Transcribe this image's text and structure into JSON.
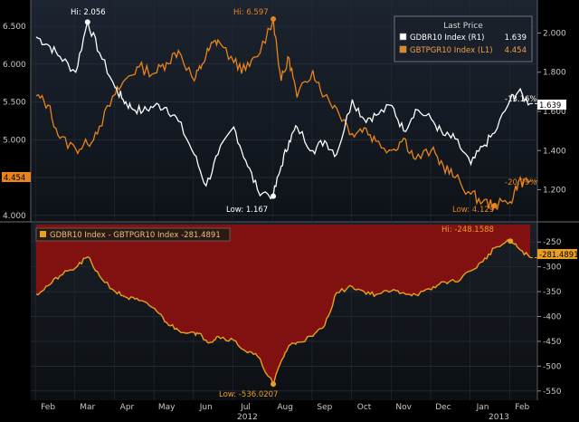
{
  "chart_data": [
    {
      "type": "line",
      "title": "Last Price",
      "y_left": {
        "ticks": [
          4.0,
          4.5,
          5.0,
          5.5,
          6.0,
          6.5
        ],
        "range": [
          3.95,
          6.8
        ],
        "tick_labels": [
          "4.000",
          "4.500",
          "5.000",
          "5.500",
          "6.000",
          "6.500"
        ]
      },
      "y_right": {
        "ticks": [
          1.2,
          1.4,
          1.6,
          1.8,
          2.0
        ],
        "range": [
          1.05,
          2.15
        ],
        "tick_labels": [
          "1.200",
          "1.400",
          "1.600",
          "1.800",
          "2.000"
        ]
      },
      "legend": [
        {
          "label": "GDBR10 Index (R1)",
          "value": "1.639"
        },
        {
          "label": "GBTPGR10 Index (L1)",
          "value": "4.454"
        }
      ],
      "series": [
        {
          "name": "GDBR10 Index",
          "axis": "right",
          "color": "#ffffff",
          "x": [
            0,
            0.3,
            0.6,
            1.0,
            1.3,
            1.6,
            2.0,
            2.2,
            2.4,
            2.7,
            3.0,
            3.3,
            3.6,
            4.0,
            4.3,
            4.6,
            5.0,
            5.3,
            5.6,
            6.0,
            6.2,
            6.4,
            6.6,
            7.0,
            7.3,
            7.6,
            8.0,
            8.3,
            8.6,
            9.0,
            9.3,
            9.6,
            10.0,
            10.3,
            10.6,
            11.0,
            11.3,
            11.6,
            12.0,
            12.2,
            12.5
          ],
          "values": [
            1.98,
            1.94,
            1.88,
            1.8,
            2.06,
            1.9,
            1.72,
            1.66,
            1.62,
            1.6,
            1.63,
            1.62,
            1.55,
            1.38,
            1.22,
            1.38,
            1.52,
            1.35,
            1.2,
            1.17,
            1.32,
            1.45,
            1.52,
            1.4,
            1.45,
            1.38,
            1.66,
            1.56,
            1.58,
            1.63,
            1.5,
            1.61,
            1.56,
            1.48,
            1.46,
            1.33,
            1.42,
            1.49,
            1.66,
            1.7,
            1.64
          ]
        },
        {
          "name": "GBTPGR10 Index",
          "axis": "left",
          "color": "#e8841a",
          "x": [
            0,
            0.3,
            0.6,
            1.0,
            1.3,
            1.6,
            2.0,
            2.3,
            2.6,
            3.0,
            3.3,
            3.6,
            4.0,
            4.2,
            4.4,
            4.6,
            5.0,
            5.3,
            5.6,
            6.0,
            6.2,
            6.4,
            6.6,
            7.0,
            7.3,
            7.6,
            8.0,
            8.3,
            8.6,
            9.0,
            9.3,
            9.6,
            10.0,
            10.3,
            10.6,
            11.0,
            11.3,
            11.6,
            12.0,
            12.2,
            12.5
          ],
          "values": [
            5.58,
            5.46,
            5.02,
            4.88,
            4.94,
            5.18,
            5.6,
            5.82,
            5.96,
            5.88,
            6.02,
            6.18,
            5.78,
            6.0,
            6.22,
            6.32,
            6.02,
            5.92,
            6.1,
            6.597,
            5.78,
            6.08,
            5.56,
            5.92,
            5.58,
            5.42,
            5.08,
            5.16,
            4.98,
            4.86,
            5.02,
            4.74,
            4.86,
            4.66,
            4.5,
            4.28,
            4.18,
            4.129,
            4.18,
            4.44,
            4.454
          ]
        }
      ],
      "annotations": [
        {
          "text": "Hi: 2.056",
          "series": "GDBR10 Index",
          "x": 1.3,
          "y": 2.056
        },
        {
          "text": "Low: 1.167",
          "series": "GDBR10 Index",
          "x": 6.0,
          "y": 1.167
        },
        {
          "text": "Hi: 6.597",
          "series": "GBTPGR10 Index",
          "x": 6.0,
          "y": 6.597
        },
        {
          "text": "Low: 4.129",
          "series": "GBTPGR10 Index",
          "x": 11.6,
          "y": 4.129
        }
      ],
      "end_tags": {
        "right_value": "1.639",
        "left_value": "4.454",
        "gdbr_change": "-13.16%",
        "gbtp_change": "-20.79%"
      }
    },
    {
      "type": "area",
      "title": "GDBR10 Index - GBTPGR10 Index -281.4891",
      "y_right": {
        "ticks": [
          -250,
          -300,
          -350,
          -400,
          -450,
          -500,
          -550
        ],
        "range": [
          -565,
          -215
        ],
        "tick_labels": [
          "-250",
          "-300",
          "-350",
          "-400",
          "-450",
          "-500",
          "-550"
        ]
      },
      "x_labels": [
        "Feb",
        "Mar",
        "Apr",
        "May",
        "Jun",
        "Jul",
        "Aug",
        "Sep",
        "Oct",
        "Nov",
        "Dec",
        "Jan",
        "Feb"
      ],
      "x_positions": [
        0.3,
        1.3,
        2.3,
        3.3,
        4.3,
        5.3,
        6.3,
        7.3,
        8.3,
        9.3,
        10.3,
        11.3,
        12.3
      ],
      "year_labels": [
        {
          "text": "2012",
          "x": 5.8
        },
        {
          "text": "2013",
          "x": 11.6
        }
      ],
      "series": [
        {
          "name": "Spread",
          "color": "#e8a020",
          "fill": "#8b0f0f",
          "x": [
            0,
            0.3,
            0.6,
            1.0,
            1.3,
            1.6,
            2.0,
            2.3,
            2.6,
            3.0,
            3.3,
            3.6,
            4.0,
            4.2,
            4.4,
            4.6,
            5.0,
            5.3,
            5.6,
            6.0,
            6.2,
            6.4,
            6.6,
            7.0,
            7.3,
            7.6,
            8.0,
            8.3,
            8.6,
            9.0,
            9.3,
            9.6,
            10.0,
            10.3,
            10.6,
            11.0,
            11.3,
            11.6,
            12.0,
            12.2,
            12.5
          ],
          "values": [
            -355,
            -338,
            -318,
            -302,
            -280,
            -318,
            -350,
            -362,
            -368,
            -384,
            -412,
            -428,
            -432,
            -440,
            -452,
            -440,
            -448,
            -470,
            -480,
            -536.0207,
            -490,
            -458,
            -452,
            -440,
            -418,
            -352,
            -340,
            -350,
            -356,
            -348,
            -352,
            -356,
            -346,
            -330,
            -330,
            -308,
            -290,
            -262,
            -248.1588,
            -262,
            -281.4891
          ]
        }
      ],
      "annotations": [
        {
          "text": "Hi: -248.1588",
          "x": 12.0,
          "y": -248.1588
        },
        {
          "text": "Low: -536.0207",
          "x": 6.0,
          "y": -536.0207
        }
      ],
      "end_tag": "-281.4891",
      "legend": {
        "label": "GDBR10 Index - GBTPGR10 Index -281.4891"
      }
    }
  ]
}
